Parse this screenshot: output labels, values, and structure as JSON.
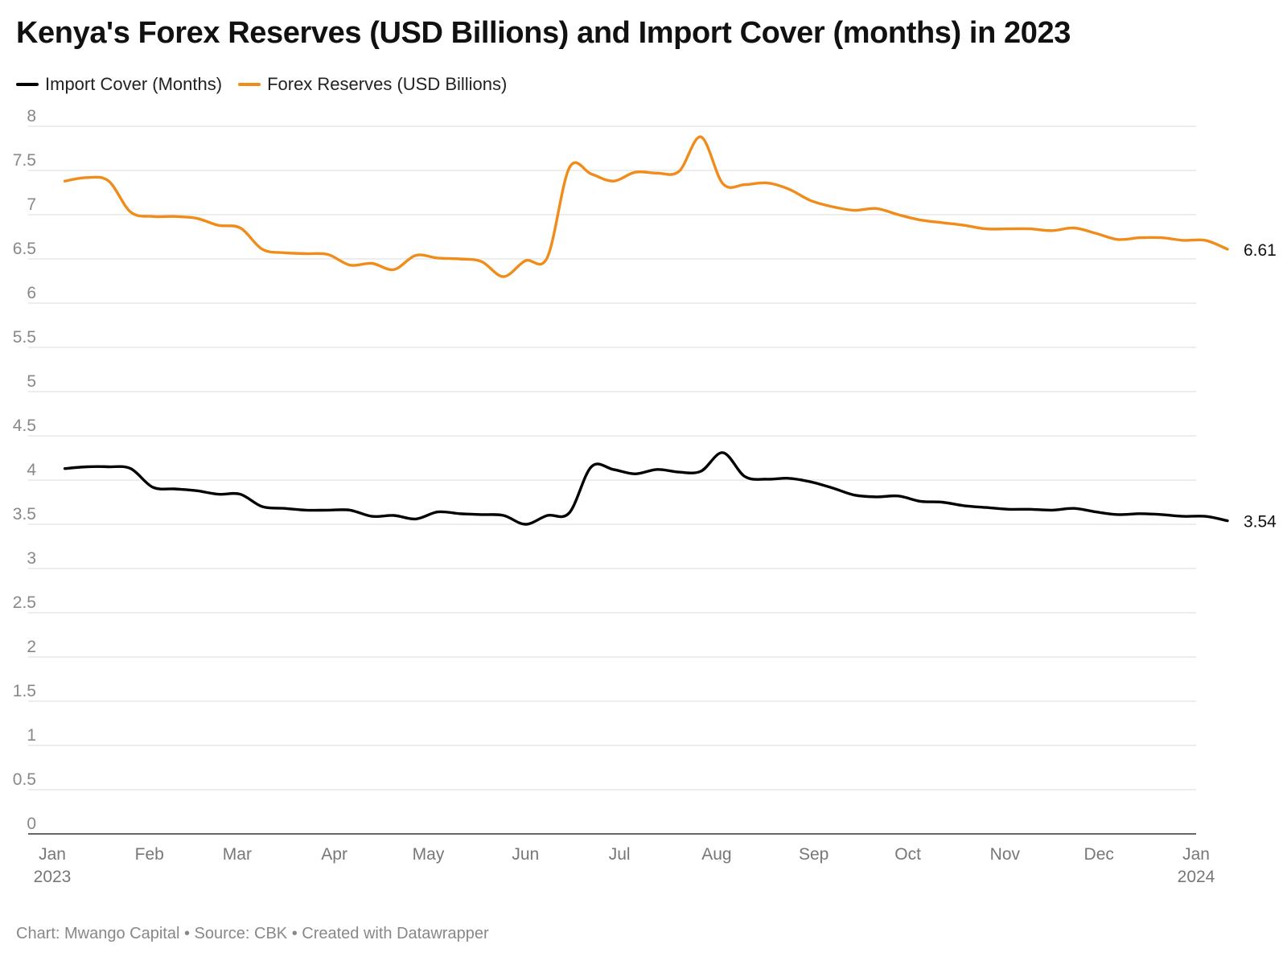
{
  "title": "Kenya's Forex Reserves (USD Billions) and Import Cover (months) in 2023",
  "footer": "Chart: Mwango Capital • Source: CBK • Created with Datawrapper",
  "colors": {
    "import_cover": "#000000",
    "forex": "#F08C1A",
    "grid": "#e2e2e2",
    "axis": "#333333"
  },
  "legend": [
    {
      "name": "Import Cover (Months)",
      "color": "#000000"
    },
    {
      "name": "Forex Reserves (USD Billions)",
      "color": "#F08C1A"
    }
  ],
  "chart_data": {
    "type": "line",
    "x_axis": {
      "range": [
        "2023-01-01",
        "2024-01-01"
      ],
      "ticks": [
        {
          "date": "2023-01-01",
          "label": "Jan",
          "sublabel": "2023"
        },
        {
          "date": "2023-02-01",
          "label": "Feb"
        },
        {
          "date": "2023-03-01",
          "label": "Mar"
        },
        {
          "date": "2023-04-01",
          "label": "Apr"
        },
        {
          "date": "2023-05-01",
          "label": "May"
        },
        {
          "date": "2023-06-01",
          "label": "Jun"
        },
        {
          "date": "2023-07-01",
          "label": "Jul"
        },
        {
          "date": "2023-08-01",
          "label": "Aug"
        },
        {
          "date": "2023-09-01",
          "label": "Sep"
        },
        {
          "date": "2023-10-01",
          "label": "Oct"
        },
        {
          "date": "2023-11-01",
          "label": "Nov"
        },
        {
          "date": "2023-12-01",
          "label": "Dec"
        },
        {
          "date": "2024-01-01",
          "label": "Jan",
          "sublabel": "2024"
        }
      ]
    },
    "y_axis": {
      "ylim": [
        0,
        8
      ],
      "ticks": [
        "0",
        "0.5",
        "1",
        "1.5",
        "2",
        "2.5",
        "3",
        "3.5",
        "4",
        "4.5",
        "5",
        "5.5",
        "6",
        "6.5",
        "7",
        "7.5",
        "8"
      ],
      "grid": true
    },
    "series": [
      {
        "name": "Forex Reserves (USD Billions)",
        "color": "#F08C1A",
        "end_label": "6.61",
        "points": [
          [
            "2023-01-05",
            7.38
          ],
          [
            "2023-01-12",
            7.42
          ],
          [
            "2023-01-19",
            7.38
          ],
          [
            "2023-01-26",
            7.03
          ],
          [
            "2023-02-02",
            6.98
          ],
          [
            "2023-02-09",
            6.98
          ],
          [
            "2023-02-16",
            6.96
          ],
          [
            "2023-02-23",
            6.88
          ],
          [
            "2023-03-02",
            6.85
          ],
          [
            "2023-03-09",
            6.61
          ],
          [
            "2023-03-16",
            6.57
          ],
          [
            "2023-03-23",
            6.56
          ],
          [
            "2023-03-30",
            6.55
          ],
          [
            "2023-04-06",
            6.43
          ],
          [
            "2023-04-13",
            6.45
          ],
          [
            "2023-04-20",
            6.38
          ],
          [
            "2023-04-27",
            6.54
          ],
          [
            "2023-05-04",
            6.51
          ],
          [
            "2023-05-11",
            6.5
          ],
          [
            "2023-05-18",
            6.47
          ],
          [
            "2023-05-25",
            6.3
          ],
          [
            "2023-06-01",
            6.48
          ],
          [
            "2023-06-08",
            6.52
          ],
          [
            "2023-06-15",
            7.53
          ],
          [
            "2023-06-22",
            7.46
          ],
          [
            "2023-06-29",
            7.38
          ],
          [
            "2023-07-06",
            7.48
          ],
          [
            "2023-07-13",
            7.47
          ],
          [
            "2023-07-20",
            7.49
          ],
          [
            "2023-07-27",
            7.88
          ],
          [
            "2023-08-03",
            7.35
          ],
          [
            "2023-08-10",
            7.34
          ],
          [
            "2023-08-17",
            7.36
          ],
          [
            "2023-08-24",
            7.29
          ],
          [
            "2023-08-31",
            7.16
          ],
          [
            "2023-09-07",
            7.09
          ],
          [
            "2023-09-14",
            7.05
          ],
          [
            "2023-09-21",
            7.07
          ],
          [
            "2023-09-28",
            7.0
          ],
          [
            "2023-10-05",
            6.94
          ],
          [
            "2023-10-12",
            6.91
          ],
          [
            "2023-10-19",
            6.88
          ],
          [
            "2023-10-26",
            6.84
          ],
          [
            "2023-11-02",
            6.84
          ],
          [
            "2023-11-09",
            6.84
          ],
          [
            "2023-11-16",
            6.82
          ],
          [
            "2023-11-23",
            6.85
          ],
          [
            "2023-11-30",
            6.79
          ],
          [
            "2023-12-07",
            6.72
          ],
          [
            "2023-12-14",
            6.74
          ],
          [
            "2023-12-21",
            6.74
          ],
          [
            "2023-12-28",
            6.71
          ],
          [
            "2024-01-04",
            6.71
          ],
          [
            "2024-01-11",
            6.61
          ]
        ]
      },
      {
        "name": "Import Cover (Months)",
        "color": "#000000",
        "end_label": "3.54",
        "points": [
          [
            "2023-01-05",
            4.13
          ],
          [
            "2023-01-12",
            4.15
          ],
          [
            "2023-01-19",
            4.15
          ],
          [
            "2023-01-26",
            4.13
          ],
          [
            "2023-02-02",
            3.92
          ],
          [
            "2023-02-09",
            3.9
          ],
          [
            "2023-02-16",
            3.88
          ],
          [
            "2023-02-23",
            3.84
          ],
          [
            "2023-03-02",
            3.84
          ],
          [
            "2023-03-09",
            3.7
          ],
          [
            "2023-03-16",
            3.68
          ],
          [
            "2023-03-23",
            3.66
          ],
          [
            "2023-03-30",
            3.66
          ],
          [
            "2023-04-06",
            3.66
          ],
          [
            "2023-04-13",
            3.59
          ],
          [
            "2023-04-20",
            3.6
          ],
          [
            "2023-04-27",
            3.56
          ],
          [
            "2023-05-04",
            3.64
          ],
          [
            "2023-05-11",
            3.62
          ],
          [
            "2023-05-18",
            3.61
          ],
          [
            "2023-05-25",
            3.6
          ],
          [
            "2023-06-01",
            3.5
          ],
          [
            "2023-06-08",
            3.6
          ],
          [
            "2023-06-15",
            3.63
          ],
          [
            "2023-06-22",
            4.15
          ],
          [
            "2023-06-29",
            4.12
          ],
          [
            "2023-07-06",
            4.07
          ],
          [
            "2023-07-13",
            4.12
          ],
          [
            "2023-07-20",
            4.09
          ],
          [
            "2023-07-27",
            4.1
          ],
          [
            "2023-08-03",
            4.31
          ],
          [
            "2023-08-10",
            4.04
          ],
          [
            "2023-08-17",
            4.01
          ],
          [
            "2023-08-24",
            4.02
          ],
          [
            "2023-08-31",
            3.98
          ],
          [
            "2023-09-07",
            3.91
          ],
          [
            "2023-09-14",
            3.83
          ],
          [
            "2023-09-21",
            3.81
          ],
          [
            "2023-09-28",
            3.82
          ],
          [
            "2023-10-05",
            3.76
          ],
          [
            "2023-10-12",
            3.75
          ],
          [
            "2023-10-19",
            3.71
          ],
          [
            "2023-10-26",
            3.69
          ],
          [
            "2023-11-02",
            3.67
          ],
          [
            "2023-11-09",
            3.67
          ],
          [
            "2023-11-16",
            3.66
          ],
          [
            "2023-11-23",
            3.68
          ],
          [
            "2023-11-30",
            3.64
          ],
          [
            "2023-12-07",
            3.61
          ],
          [
            "2023-12-14",
            3.62
          ],
          [
            "2023-12-21",
            3.61
          ],
          [
            "2023-12-28",
            3.59
          ],
          [
            "2024-01-04",
            3.59
          ],
          [
            "2024-01-11",
            3.54
          ]
        ]
      }
    ]
  }
}
